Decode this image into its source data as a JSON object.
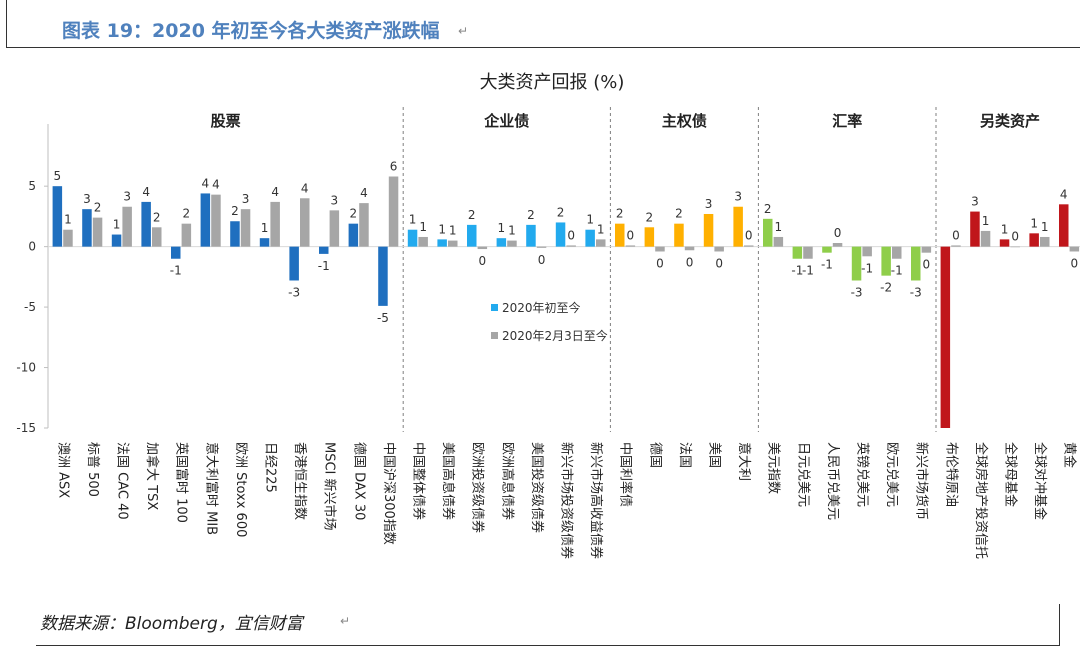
{
  "figure_title": "图表 19：2020 年初至今各大类资产涨跌幅",
  "source_note": "数据来源：Bloomberg，宜信财富",
  "paragraph_mark": "↵",
  "colors": {
    "equity": "#1f6fbf",
    "credit": "#22aaee",
    "sovereign": "#ffb000",
    "fx": "#8fce4a",
    "alternative": "#c0161b",
    "since_feb3": "#a6a6a6"
  },
  "chart_data": {
    "type": "bar",
    "title": "大类资产回报 (%)",
    "ylim": [
      -15,
      7
    ],
    "yticks": [
      -15,
      -10,
      -5,
      0,
      5
    ],
    "legend": {
      "entries": [
        "2020年初至今",
        "2020年2月3日至今"
      ],
      "placement": "center"
    },
    "groups": [
      {
        "label": "股票",
        "color_key": "equity",
        "start": 0,
        "end": 12
      },
      {
        "label": "企业债",
        "color_key": "credit",
        "start": 12,
        "end": 19
      },
      {
        "label": "主权债",
        "color_key": "sovereign",
        "start": 19,
        "end": 24
      },
      {
        "label": "汇率",
        "color_key": "fx",
        "start": 24,
        "end": 30
      },
      {
        "label": "另类资产",
        "color_key": "alternative",
        "start": 30,
        "end": 35
      }
    ],
    "categories": [
      "澳洲 ASX",
      "标普 500",
      "法国 CAC 40",
      "加拿大 TSX",
      "英国富时 100",
      "意大利富时 MIB",
      "欧洲 Stoxx 600",
      "日经225",
      "香港恒生指数",
      "MSCI 新兴市场",
      "德国 DAX 30",
      "中国沪深300指数",
      "中国整体债券",
      "美国高息债券",
      "欧洲投资级债券",
      "欧洲高息债券",
      "美国投资级债券",
      "新兴市场投资级债券",
      "新兴市场高收益债券",
      "中国利率债",
      "德国",
      "法国",
      "美国",
      "意大利",
      "美元指数",
      "日元兑美元",
      "人民币兑美元",
      "英镑兑美元",
      "欧元兑美元",
      "新兴市场货币",
      "布伦特原油",
      "全球房地产投资信托",
      "全球母基金",
      "全球对冲基金",
      "黄金"
    ],
    "series": [
      {
        "name": "2020年初至今",
        "values": [
          5.0,
          3.1,
          1.0,
          3.7,
          -1.0,
          4.4,
          2.1,
          0.7,
          -2.8,
          -0.6,
          1.9,
          -4.9,
          1.4,
          0.6,
          1.8,
          0.7,
          1.8,
          2.0,
          1.4,
          1.9,
          1.6,
          1.9,
          2.7,
          3.3,
          2.3,
          -1.0,
          -0.5,
          -2.8,
          -2.4,
          -2.8,
          -15.0,
          2.9,
          0.6,
          1.1,
          3.5
        ],
        "labels": [
          "5",
          "3",
          "1",
          "4",
          "-1",
          "4",
          "2",
          "1",
          "-3",
          "-1",
          "2",
          "-5",
          "1",
          "1",
          "2",
          "1",
          "2",
          "2",
          "1",
          "2",
          "2",
          "2",
          "3",
          "3",
          "2",
          "-1",
          "-1",
          "-3",
          "-2",
          "-3",
          "",
          "3",
          "1",
          "1",
          "4"
        ]
      },
      {
        "name": "2020年2月3日至今",
        "values": [
          1.4,
          2.4,
          3.3,
          1.6,
          1.9,
          4.3,
          3.1,
          3.7,
          4.0,
          3.0,
          3.6,
          5.8,
          0.8,
          0.5,
          -0.2,
          0.5,
          -0.1,
          0.1,
          0.6,
          0.1,
          -0.4,
          -0.3,
          -0.4,
          0.1,
          0.8,
          -1.0,
          0.3,
          -0.8,
          -1.0,
          -0.5,
          0.1,
          1.3,
          0.0,
          0.8,
          -0.4
        ],
        "labels": [
          "1",
          "2",
          "3",
          "2",
          "2",
          "4",
          "3",
          "4",
          "4",
          "3",
          "4",
          "6",
          "1",
          "1",
          "0",
          "1",
          "0",
          "0",
          "1",
          "0",
          "0",
          "0",
          "0",
          "0",
          "1",
          "-1",
          "0",
          "-1",
          "-1",
          "0",
          "0",
          "1",
          "0",
          "1",
          "0"
        ]
      }
    ]
  }
}
